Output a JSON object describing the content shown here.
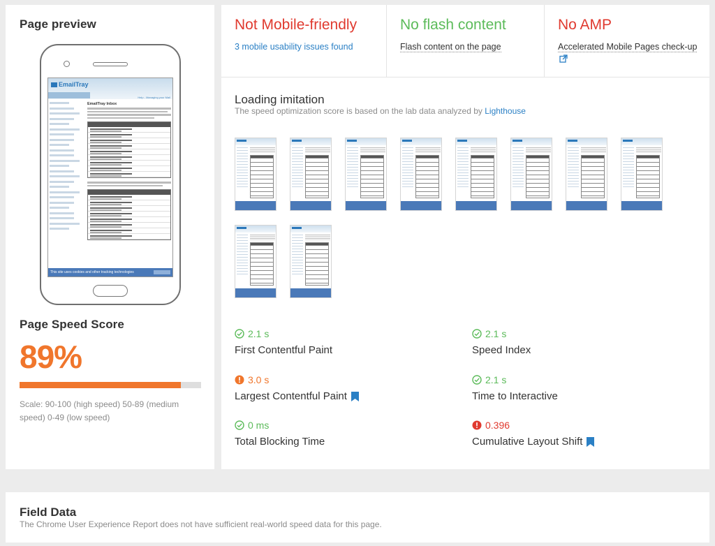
{
  "preview": {
    "title": "Page preview",
    "screen": {
      "site_logo": "EmailTray",
      "site_link": "Help - Managing your Mail",
      "heading": "EmailTray Inbox",
      "cookie_banner": "This site uses cookies and other tracking technologies"
    }
  },
  "speed": {
    "title": "Page Speed Score",
    "score_label": "89%",
    "score_value": 89,
    "scale_text": "Scale: 90-100 (high speed) 50-89 (medium speed) 0-49 (low speed)",
    "bar_color": "#f0762c"
  },
  "checks": [
    {
      "title": "Not Mobile-friendly",
      "subtitle": "3 mobile usability issues found",
      "status": "fail"
    },
    {
      "title": "No flash content",
      "subtitle": "Flash content on the page",
      "status": "pass"
    },
    {
      "title": "No AMP",
      "subtitle": "Accelerated Mobile Pages check-up",
      "status": "fail",
      "icon": "external-link-icon"
    }
  ],
  "loading": {
    "title": "Loading imitation",
    "subtitle": "The speed optimization score is based on the lab data analyzed by",
    "link": "Lighthouse",
    "frame_count": 10
  },
  "metrics": {
    "fcp": {
      "value": "2.1 s",
      "label": "First Contentful Paint",
      "status": "good"
    },
    "si": {
      "value": "2.1 s",
      "label": "Speed Index",
      "status": "good"
    },
    "lcp": {
      "value": "3.0 s",
      "label": "Largest Contentful Paint",
      "status": "average"
    },
    "tti": {
      "value": "2.1 s",
      "label": "Time to Interactive",
      "status": "good"
    },
    "tbt": {
      "value": "0 ms",
      "label": "Total Blocking Time",
      "status": "good"
    },
    "cls": {
      "value": "0.396",
      "label": "Cumulative Layout Shift",
      "status": "poor"
    }
  },
  "field": {
    "title": "Field Data",
    "subtitle": "The Chrome User Experience Report does not have sufficient real-world speed data for this page."
  },
  "colors": {
    "good": "#5cbb5a",
    "average": "#f0762c",
    "poor": "#e03a2f",
    "link": "#2b80c5"
  }
}
